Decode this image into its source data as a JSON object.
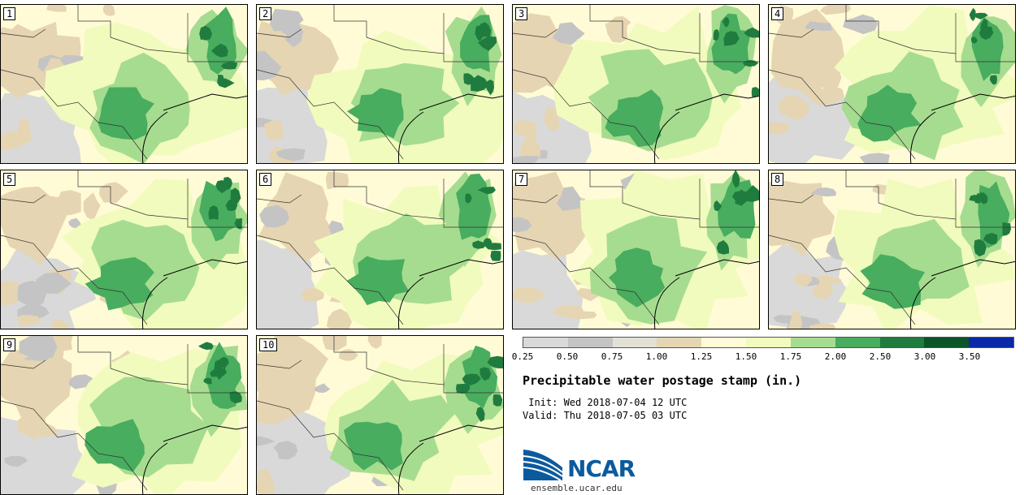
{
  "stamps": [
    {
      "label": "1"
    },
    {
      "label": "2"
    },
    {
      "label": "3"
    },
    {
      "label": "4"
    },
    {
      "label": "5"
    },
    {
      "label": "6"
    },
    {
      "label": "7"
    },
    {
      "label": "8"
    },
    {
      "label": "9"
    },
    {
      "label": "10"
    }
  ],
  "colorbar": {
    "ticks": [
      "0.25",
      "0.50",
      "0.75",
      "1.00",
      "1.25",
      "1.50",
      "1.75",
      "2.00",
      "2.50",
      "3.00",
      "3.50"
    ],
    "colors": [
      "#d9d9d9",
      "#c4c4c4",
      "#e3e0d6",
      "#e6d5b2",
      "#fffbd6",
      "#f1fbbd",
      "#a6dc8f",
      "#48ad5e",
      "#1f7c3e",
      "#0a5427",
      "#0a28a8"
    ]
  },
  "title": "Precipitable water postage stamp (in.)",
  "init": " Init: Wed 2018-07-04 12 UTC",
  "valid": "Valid: Thu 2018-07-05 03 UTC",
  "logo": {
    "text": "NCAR",
    "site": "ensemble.ucar.edu"
  }
}
